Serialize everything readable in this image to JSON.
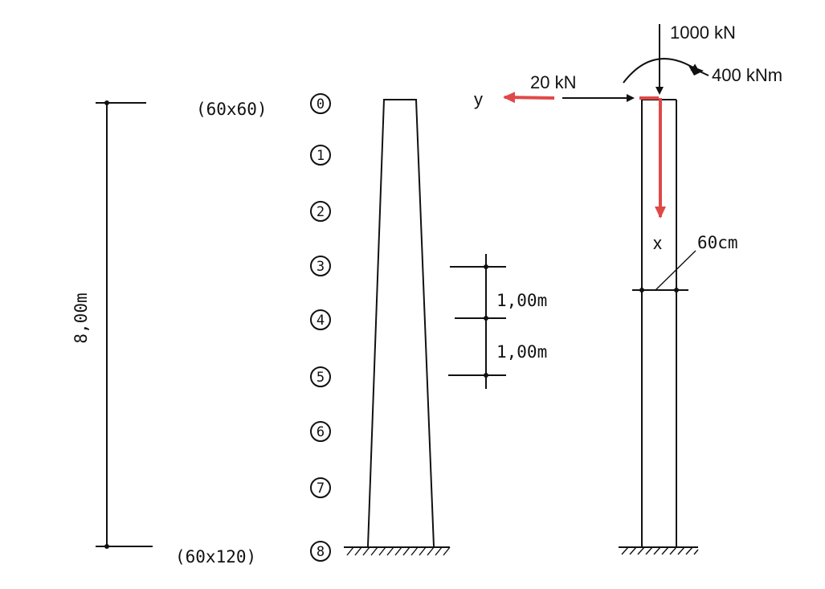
{
  "dimensions": {
    "height": "8,00m",
    "top_section": "(60x60)",
    "bottom_section": "(60x120)",
    "spacing_a": "1,00m",
    "spacing_b": "1,00m",
    "width_right": "60cm"
  },
  "nodes": [
    "0",
    "1",
    "2",
    "3",
    "4",
    "5",
    "6",
    "7",
    "8"
  ],
  "loads": {
    "vertical": "1000 kN",
    "moment": "400 kNm",
    "horizontal": "20 kN"
  },
  "axes": {
    "y": "y",
    "x": "x"
  },
  "colors": {
    "ink": "#111111",
    "axis_red": "#e04848"
  }
}
